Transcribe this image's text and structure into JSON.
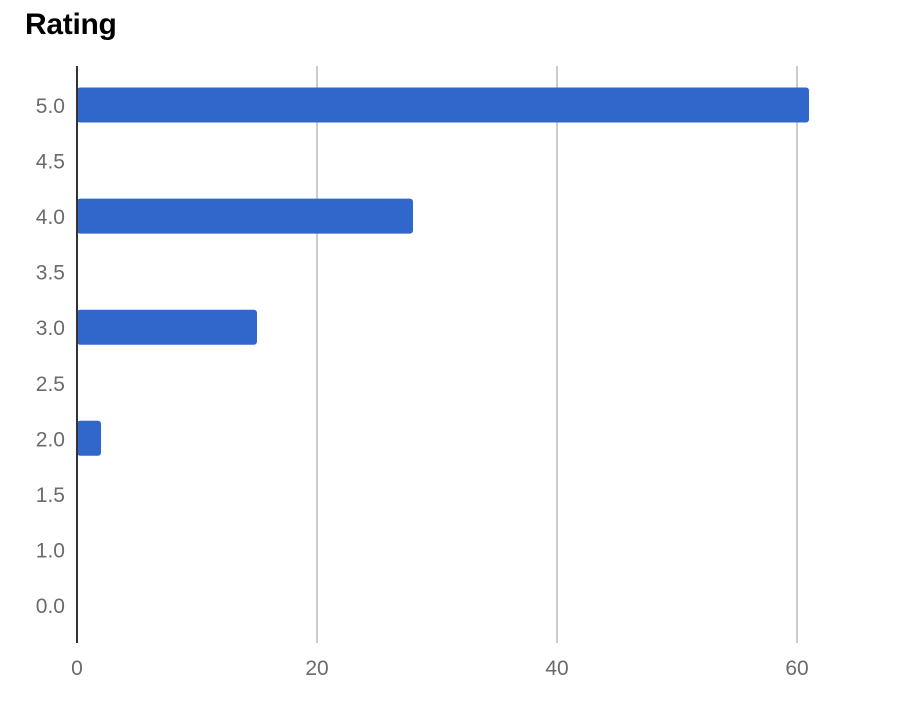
{
  "chart_data": {
    "type": "bar",
    "orientation": "horizontal",
    "title": "Rating",
    "xlabel": "",
    "ylabel": "",
    "categories": [
      "5.0",
      "4.5",
      "4.0",
      "3.5",
      "3.0",
      "2.5",
      "2.0",
      "1.5",
      "1.0",
      "0.0"
    ],
    "values": [
      61,
      0,
      28,
      0,
      15,
      0,
      2,
      0,
      0,
      0
    ],
    "xlim": [
      0,
      68
    ],
    "x_ticks": [
      "0",
      "20",
      "40",
      "60"
    ],
    "x_tick_values": [
      0,
      20,
      40,
      60
    ],
    "grid": true,
    "legend": "none",
    "colors": {
      "bar": "#3167CB",
      "grid": "#cccccc",
      "axis": "#333333",
      "tick_text": "#6b6b6b"
    }
  }
}
